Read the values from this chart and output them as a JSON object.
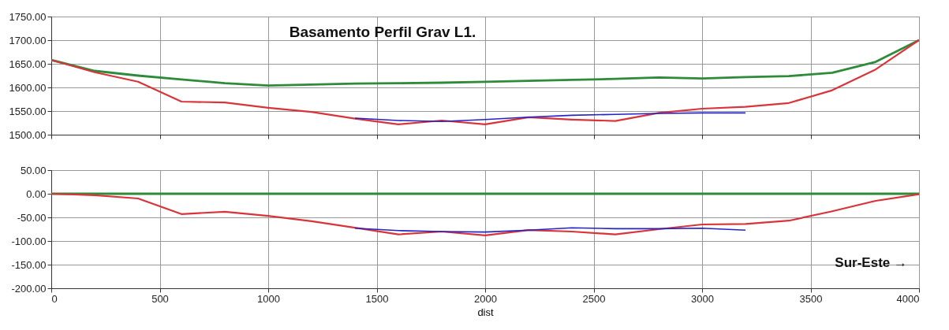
{
  "chart_data": [
    {
      "type": "line",
      "title": "Basamento Perfil Grav L1.",
      "xlim": [
        0,
        4000
      ],
      "xticks": [
        0,
        500,
        1000,
        1500,
        2000,
        2500,
        3000,
        3500,
        4000
      ],
      "ylim": [
        1500,
        1750
      ],
      "yticks": [
        {
          "value": 1500,
          "label": "1500.00"
        },
        {
          "value": 1550,
          "label": "1550.00"
        },
        {
          "value": 1600,
          "label": "1600.00"
        },
        {
          "value": 1650,
          "label": "1650.00"
        },
        {
          "value": 1700,
          "label": "1700.00"
        },
        {
          "value": 1750,
          "label": "1750.00"
        }
      ],
      "grid": true,
      "tick_labels": "y",
      "marker": "none",
      "line_style": "solid",
      "series": [
        {
          "color": "#2e8b3a",
          "x": [
            0,
            200,
            400,
            600,
            800,
            1000,
            1200,
            1400,
            1600,
            1800,
            2000,
            2200,
            2400,
            2600,
            2800,
            3000,
            3200,
            3400,
            3600,
            3800,
            4000
          ],
          "values": [
            1658,
            1635,
            1625,
            1617,
            1609,
            1604,
            1606,
            1608,
            1609,
            1610,
            1612,
            1614,
            1616,
            1618,
            1621,
            1619,
            1622,
            1624,
            1631,
            1654,
            1700
          ]
        },
        {
          "color": "#d9343a",
          "x": [
            0,
            200,
            400,
            600,
            800,
            1000,
            1200,
            1400,
            1600,
            1800,
            2000,
            2200,
            2400,
            2600,
            2800,
            3000,
            3200,
            3400,
            3600,
            3800,
            4000
          ],
          "values": [
            1658,
            1632,
            1612,
            1570,
            1568,
            1557,
            1548,
            1534,
            1522,
            1530,
            1522,
            1537,
            1532,
            1529,
            1546,
            1555,
            1559,
            1567,
            1594,
            1638,
            1700
          ]
        },
        {
          "color": "#2323c8",
          "x": [
            1400,
            1600,
            1800,
            2000,
            2200,
            2400,
            2600,
            2800,
            3000,
            3200
          ],
          "values": [
            1535,
            1530,
            1528,
            1532,
            1537,
            1541,
            1543,
            1545,
            1546,
            1546
          ]
        }
      ]
    },
    {
      "type": "line",
      "xlabel": "dist",
      "annotations": [
        "Sur-Este →"
      ],
      "xlim": [
        0,
        4000
      ],
      "xticks": [
        0,
        500,
        1000,
        1500,
        2000,
        2500,
        3000,
        3500,
        4000
      ],
      "ylim": [
        -200,
        50
      ],
      "yticks": [
        {
          "value": -200,
          "label": "-200.00"
        },
        {
          "value": -150,
          "label": "-150.00"
        },
        {
          "value": -100,
          "label": "-100.00"
        },
        {
          "value": -50,
          "label": "-50.00"
        },
        {
          "value": 0,
          "label": "0.00"
        },
        {
          "value": 50,
          "label": "50.00"
        }
      ],
      "grid": true,
      "marker": "none",
      "line_style": "solid",
      "series": [
        {
          "color": "#2e8b3a",
          "x": [
            0,
            4000
          ],
          "values": [
            0,
            0
          ]
        },
        {
          "color": "#d9343a",
          "x": [
            0,
            200,
            400,
            600,
            800,
            1000,
            1200,
            1400,
            1600,
            1800,
            2000,
            2200,
            2400,
            2600,
            2800,
            3000,
            3200,
            3400,
            3600,
            3800,
            4000
          ],
          "values": [
            0,
            -3,
            -10,
            -43,
            -38,
            -47,
            -58,
            -72,
            -86,
            -80,
            -88,
            -77,
            -80,
            -86,
            -75,
            -65,
            -64,
            -57,
            -37,
            -15,
            -1
          ]
        },
        {
          "color": "#2323c8",
          "x": [
            1400,
            1600,
            1800,
            2000,
            2200,
            2400,
            2600,
            2800,
            3000,
            3200
          ],
          "values": [
            -73,
            -78,
            -80,
            -81,
            -77,
            -72,
            -74,
            -74,
            -73,
            -77
          ]
        }
      ]
    }
  ]
}
